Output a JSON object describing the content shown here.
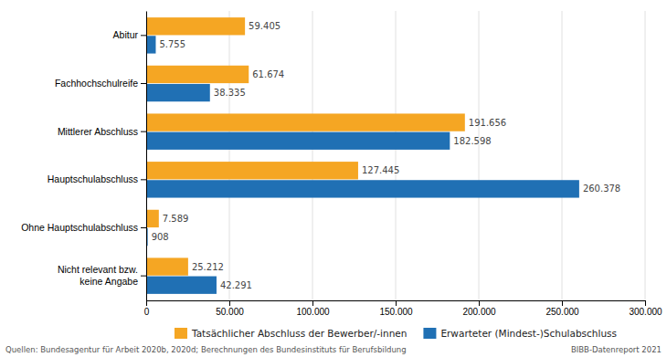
{
  "chart_data": {
    "type": "bar",
    "orientation": "horizontal",
    "categories": [
      "Abitur",
      "Fachhochschulreife",
      "Mittlerer Abschluss",
      "Hauptschulabschluss",
      "Ohne Hauptschulabschluss",
      "Nicht relevant bzw.\nkeine Angabe"
    ],
    "series": [
      {
        "name": "Tatsächlicher Abschluss der Bewerber/-innen",
        "color": "#F5A623",
        "values": [
          59405,
          61674,
          191656,
          127445,
          7589,
          25212
        ],
        "value_labels": [
          "59.405",
          "61.674",
          "191.656",
          "127.445",
          "7.589",
          "25.212"
        ]
      },
      {
        "name": "Erwarteter (Mindest-)Schulabschluss",
        "color": "#2070B4",
        "values": [
          5755,
          38335,
          182598,
          260378,
          908,
          42291
        ],
        "value_labels": [
          "5.755",
          "38.335",
          "182.598",
          "260.378",
          "908",
          "42.291"
        ]
      }
    ],
    "xlim": [
      0,
      300000
    ],
    "xticks": [
      0,
      {
        "value": 50000,
        "label": "50.000"
      },
      {
        "value": 100000,
        "label": "100.000"
      },
      {
        "value": 150000,
        "label": "150.000"
      },
      {
        "value": 200000,
        "label": "200.000"
      },
      {
        "value": 250000,
        "label": "250.000"
      },
      {
        "value": 300000,
        "label": "300.000"
      }
    ],
    "grid": true,
    "data_labels": true,
    "legend": "bottom",
    "annotations": [
      "Quellen: Bundesagentur für Arbeit 2020b, 2020d; Berechnungen des Bundesinstituts für Berufsbildung",
      "BIBB-Datenreport 2021"
    ]
  }
}
